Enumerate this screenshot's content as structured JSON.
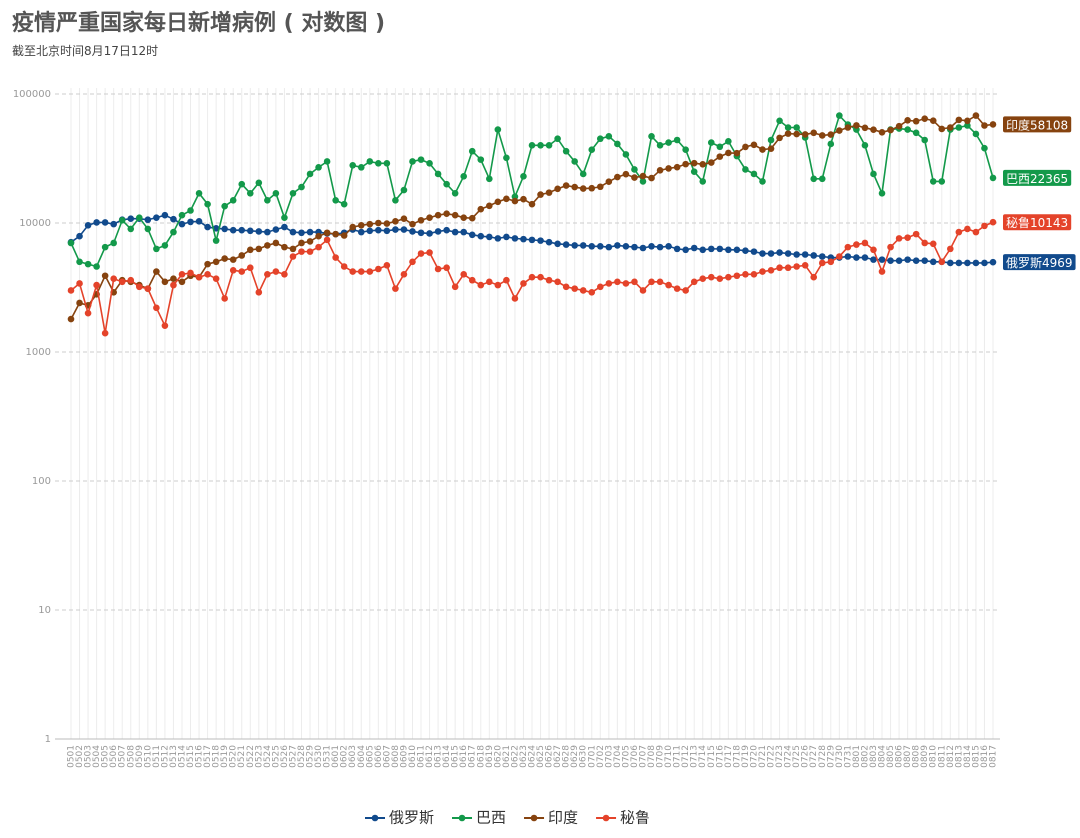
{
  "chart_data": {
    "type": "line",
    "title": "疫情严重国家每日新增病例 ( 对数图 )",
    "subtitle": "截至北京时间8月17日12时",
    "log_scale": true,
    "grid": true,
    "ylim": [
      1,
      100000
    ],
    "yticks": [
      1,
      10,
      100,
      1000,
      10000,
      100000
    ],
    "categories": [
      "0501",
      "0502",
      "0503",
      "0504",
      "0505",
      "0506",
      "0507",
      "0508",
      "0509",
      "0510",
      "0511",
      "0512",
      "0513",
      "0514",
      "0515",
      "0516",
      "0517",
      "0518",
      "0519",
      "0520",
      "0521",
      "0522",
      "0523",
      "0524",
      "0525",
      "0526",
      "0527",
      "0528",
      "0529",
      "0530",
      "0531",
      "0601",
      "0602",
      "0603",
      "0604",
      "0605",
      "0606",
      "0607",
      "0608",
      "0609",
      "0610",
      "0611",
      "0612",
      "0613",
      "0614",
      "0615",
      "0616",
      "0617",
      "0618",
      "0619",
      "0620",
      "0621",
      "0622",
      "0623",
      "0624",
      "0625",
      "0626",
      "0627",
      "0628",
      "0629",
      "0630",
      "0701",
      "0702",
      "0703",
      "0704",
      "0705",
      "0706",
      "0707",
      "0708",
      "0709",
      "0710",
      "0711",
      "0712",
      "0713",
      "0714",
      "0715",
      "0716",
      "0717",
      "0718",
      "0719",
      "0720",
      "0721",
      "0722",
      "0723",
      "0724",
      "0725",
      "0726",
      "0727",
      "0728",
      "0729",
      "0730",
      "0731",
      "0801",
      "0802",
      "0803",
      "0804",
      "0805",
      "0806",
      "0807",
      "0808",
      "0809",
      "0810",
      "0811",
      "0812",
      "0813",
      "0814",
      "0815",
      "0816",
      "0817"
    ],
    "series": [
      {
        "name": "俄罗斯",
        "color": "#114a8c",
        "values": [
          7100,
          7900,
          9600,
          10100,
          10100,
          9800,
          10600,
          10800,
          10800,
          10600,
          11000,
          11500,
          10700,
          9800,
          10200,
          10300,
          9300,
          9100,
          9000,
          8800,
          8800,
          8700,
          8600,
          8500,
          8900,
          9300,
          8500,
          8400,
          8500,
          8500,
          8300,
          8200,
          8400,
          8900,
          8500,
          8700,
          8800,
          8700,
          8900,
          8900,
          8600,
          8400,
          8300,
          8600,
          8800,
          8500,
          8500,
          8100,
          7900,
          7800,
          7600,
          7800,
          7600,
          7500,
          7400,
          7300,
          7100,
          6900,
          6800,
          6700,
          6700,
          6600,
          6600,
          6500,
          6700,
          6600,
          6500,
          6400,
          6600,
          6500,
          6600,
          6300,
          6200,
          6400,
          6200,
          6300,
          6300,
          6200,
          6200,
          6100,
          6000,
          5800,
          5800,
          5900,
          5800,
          5700,
          5700,
          5600,
          5500,
          5400,
          5400,
          5500,
          5400,
          5400,
          5200,
          5200,
          5100,
          5100,
          5200,
          5100,
          5100,
          5000,
          5000,
          4900,
          4900,
          4900,
          4900,
          4900,
          4969
        ]
      },
      {
        "name": "巴西",
        "color": "#13994a",
        "values": [
          7000,
          5000,
          4800,
          4600,
          6500,
          7000,
          10500,
          9000,
          11000,
          9000,
          6300,
          6700,
          8500,
          11500,
          12500,
          17000,
          14000,
          7300,
          13500,
          15000,
          20000,
          17000,
          20500,
          15000,
          17000,
          11000,
          17000,
          19000,
          24000,
          27000,
          30000,
          15000,
          14000,
          28000,
          27000,
          30000,
          29000,
          29000,
          15000,
          18000,
          30000,
          31000,
          29000,
          24000,
          20000,
          17000,
          23000,
          36000,
          31000,
          22000,
          53000,
          32000,
          16000,
          23000,
          40000,
          40000,
          40000,
          45000,
          36000,
          30000,
          24000,
          37000,
          45000,
          47000,
          41000,
          34000,
          26000,
          21000,
          47000,
          40000,
          42000,
          44000,
          37000,
          25000,
          21000,
          42000,
          39000,
          43000,
          33000,
          26000,
          24000,
          21000,
          44000,
          62000,
          55000,
          55000,
          46000,
          22000,
          22000,
          41000,
          68000,
          58000,
          53000,
          40000,
          24000,
          17000,
          53000,
          54000,
          53000,
          50000,
          44000,
          21000,
          21000,
          53000,
          55000,
          57000,
          49000,
          38000,
          22365
        ]
      },
      {
        "name": "印度",
        "color": "#86430f",
        "values": [
          1800,
          2400,
          2300,
          2800,
          3900,
          2900,
          3600,
          3500,
          3300,
          3100,
          4200,
          3500,
          3700,
          3500,
          3900,
          3800,
          4800,
          5000,
          5300,
          5200,
          5600,
          6200,
          6300,
          6700,
          7000,
          6500,
          6300,
          7000,
          7200,
          7900,
          8400,
          8200,
          8000,
          9300,
          9600,
          9800,
          10000,
          9900,
          10300,
          10800,
          9800,
          10500,
          11000,
          11500,
          11800,
          11500,
          11000,
          10900,
          12800,
          13600,
          14600,
          15400,
          14800,
          15300,
          14000,
          16600,
          17200,
          18400,
          19500,
          19000,
          18500,
          18600,
          19100,
          20900,
          22700,
          23900,
          22500,
          23100,
          22300,
          25600,
          26500,
          27100,
          28600,
          29100,
          28500,
          29400,
          32700,
          34900,
          34800,
          38900,
          40400,
          37100,
          37700,
          45700,
          49300,
          48900,
          48600,
          50000,
          47700,
          48500,
          52100,
          55000,
          57100,
          54700,
          52900,
          50500,
          52500,
          56300,
          62500,
          61500,
          64400,
          62100,
          53600,
          55000,
          63000,
          62000,
          68000,
          57000,
          58108
        ]
      },
      {
        "name": "秘鲁",
        "color": "#e4432a",
        "values": [
          3000,
          3400,
          2000,
          3300,
          1400,
          3700,
          3500,
          3600,
          3200,
          3100,
          2200,
          1600,
          3300,
          4000,
          4100,
          3800,
          4000,
          3700,
          2600,
          4300,
          4200,
          4500,
          2900,
          4000,
          4200,
          4000,
          5500,
          6000,
          6000,
          6500,
          7400,
          5400,
          4600,
          4200,
          4200,
          4200,
          4400,
          4700,
          3100,
          4000,
          5000,
          5800,
          5900,
          4400,
          4500,
          3200,
          4000,
          3600,
          3300,
          3500,
          3300,
          3600,
          2600,
          3400,
          3800,
          3800,
          3600,
          3500,
          3200,
          3100,
          3000,
          2900,
          3200,
          3400,
          3500,
          3400,
          3500,
          3000,
          3500,
          3500,
          3300,
          3100,
          3000,
          3500,
          3700,
          3800,
          3700,
          3800,
          3900,
          4000,
          4000,
          4200,
          4300,
          4500,
          4500,
          4600,
          4700,
          3800,
          4900,
          5000,
          5500,
          6500,
          6800,
          7000,
          6200,
          4200,
          6500,
          7600,
          7700,
          8200,
          7000,
          6900,
          5000,
          6300,
          8500,
          9000,
          8500,
          9500,
          10143
        ]
      }
    ]
  }
}
